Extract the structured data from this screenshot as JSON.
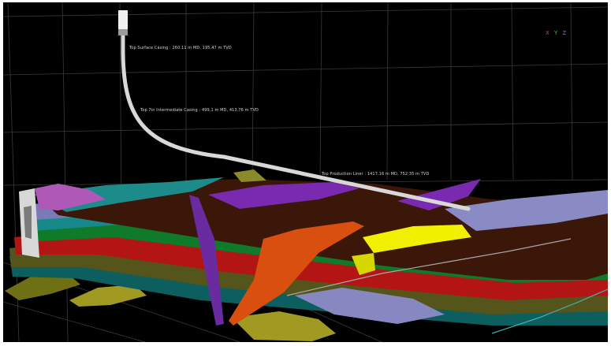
{
  "viewer": {
    "background_color": "#000000",
    "well_color": "#e6e6e6",
    "well_labels": [
      "Top Surface Casing : 260.11 m MD, 195.47 m TVD",
      "Top 7in Intermediate Casing : 499.1 m MD, 413.76 m TVD",
      "Top Production Liner : 1417.16 m MD, 752.35 m TVD"
    ],
    "axis_triad": {
      "labels": [
        "X",
        "Y",
        "Z"
      ],
      "colors": [
        "#ff3b3b",
        "#3bd03b",
        "#5a78ff"
      ]
    },
    "horizon_colors": [
      "#3a1708",
      "#7777b8",
      "#1a8a8a",
      "#0f7a2c",
      "#b01818",
      "#6a6a1a",
      "#c8b014",
      "#8a2aa8",
      "#c4c4c4",
      "#e05a14",
      "#f0f000",
      "#c060c0"
    ]
  }
}
